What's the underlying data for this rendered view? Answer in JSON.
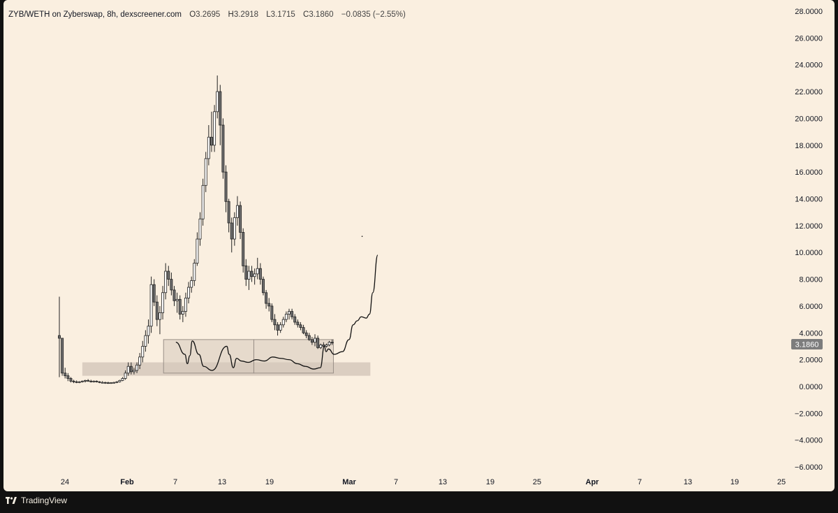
{
  "header": {
    "symbol": "ZYB/WETH on Zyberswap, 8h, dexscreener.com",
    "ohlc": [
      {
        "key": "O",
        "value": "3.2695"
      },
      {
        "key": "H",
        "value": "3.2918"
      },
      {
        "key": "L",
        "value": "3.1715"
      },
      {
        "key": "C",
        "value": "3.1860"
      }
    ],
    "change": "−0.0835 (−2.55%)"
  },
  "footer": {
    "brand": "TradingView"
  },
  "colors": {
    "background": "#faefe0",
    "frame": "#111111",
    "candle_up": "#ffffff",
    "candle_down": "#6e6e6e",
    "candle_wick": "#222222",
    "zone_fill": "#d5c8bb",
    "projection": "#111111",
    "price_tag": "#7d7d7d"
  },
  "chart_data": {
    "type": "candlestick",
    "title": "ZYB/WETH on Zyberswap, 8h, dexscreener.com",
    "y_ticks": [
      "28.0000",
      "26.0000",
      "24.0000",
      "22.0000",
      "20.0000",
      "18.0000",
      "16.0000",
      "14.0000",
      "12.0000",
      "10.0000",
      "8.0000",
      "6.0000",
      "4.0000",
      "2.0000",
      "0.0000",
      "−2.0000",
      "−4.0000",
      "−6.0000"
    ],
    "ylim": [
      -6.8,
      28.3
    ],
    "x_ticks": [
      "24",
      "Feb",
      "7",
      "13",
      "19",
      "Mar",
      "7",
      "13",
      "19",
      "25",
      "Apr",
      "7",
      "13",
      "19",
      "25"
    ],
    "last_price": "3.1860",
    "grid": false,
    "series": [
      {
        "values": [
          [
            3.8,
            6.7,
            0.7,
            3.6
          ],
          [
            3.6,
            3.6,
            0.8,
            1.0
          ],
          [
            1.0,
            1.4,
            0.6,
            0.8
          ],
          [
            0.8,
            1.0,
            0.4,
            0.6
          ],
          [
            0.6,
            0.7,
            0.3,
            0.4
          ],
          [
            0.4,
            0.5,
            0.25,
            0.35
          ],
          [
            0.35,
            0.45,
            0.25,
            0.3
          ],
          [
            0.3,
            0.4,
            0.25,
            0.35
          ],
          [
            0.35,
            0.45,
            0.3,
            0.4
          ],
          [
            0.4,
            0.5,
            0.3,
            0.45
          ],
          [
            0.45,
            0.55,
            0.35,
            0.4
          ],
          [
            0.4,
            0.5,
            0.3,
            0.35
          ],
          [
            0.35,
            0.45,
            0.3,
            0.4
          ],
          [
            0.4,
            0.45,
            0.3,
            0.35
          ],
          [
            0.35,
            0.4,
            0.25,
            0.3
          ],
          [
            0.3,
            0.4,
            0.25,
            0.3
          ],
          [
            0.3,
            0.35,
            0.2,
            0.28
          ],
          [
            0.28,
            0.35,
            0.2,
            0.25
          ],
          [
            0.25,
            0.32,
            0.2,
            0.28
          ],
          [
            0.28,
            0.35,
            0.22,
            0.3
          ],
          [
            0.3,
            0.4,
            0.25,
            0.35
          ],
          [
            0.35,
            0.5,
            0.3,
            0.45
          ],
          [
            0.45,
            0.7,
            0.4,
            0.6
          ],
          [
            0.6,
            1.2,
            0.5,
            1.0
          ],
          [
            1.0,
            1.8,
            0.8,
            1.5
          ],
          [
            1.5,
            1.8,
            0.9,
            1.1
          ],
          [
            1.1,
            1.4,
            0.9,
            1.2
          ],
          [
            1.2,
            1.8,
            1.0,
            1.6
          ],
          [
            1.6,
            2.5,
            1.3,
            2.2
          ],
          [
            2.2,
            3.4,
            1.8,
            3.0
          ],
          [
            3.0,
            4.2,
            2.6,
            3.8
          ],
          [
            3.8,
            5.0,
            3.2,
            4.5
          ],
          [
            4.5,
            8.2,
            4.0,
            7.6
          ],
          [
            7.6,
            8.0,
            6.0,
            6.3
          ],
          [
            6.3,
            6.8,
            4.5,
            5.0
          ],
          [
            5.0,
            6.0,
            3.9,
            5.5
          ],
          [
            5.5,
            7.5,
            5.0,
            7.0
          ],
          [
            7.0,
            9.2,
            6.5,
            8.6
          ],
          [
            8.6,
            9.0,
            7.5,
            8.0
          ],
          [
            8.0,
            8.5,
            6.8,
            7.2
          ],
          [
            7.2,
            7.5,
            6.0,
            6.4
          ],
          [
            6.4,
            7.0,
            5.5,
            6.5
          ],
          [
            6.5,
            6.8,
            5.0,
            5.4
          ],
          [
            5.4,
            6.0,
            4.8,
            5.6
          ],
          [
            5.6,
            7.0,
            5.2,
            6.6
          ],
          [
            6.6,
            7.8,
            6.2,
            7.4
          ],
          [
            7.4,
            8.2,
            7.0,
            7.9
          ],
          [
            7.9,
            9.5,
            7.5,
            9.2
          ],
          [
            9.2,
            11.5,
            9.0,
            11.0
          ],
          [
            11.0,
            13.0,
            10.5,
            12.5
          ],
          [
            12.5,
            15.5,
            12.0,
            15.0
          ],
          [
            15.0,
            17.5,
            14.5,
            17.0
          ],
          [
            17.0,
            19.5,
            16.5,
            18.6
          ],
          [
            18.6,
            20.5,
            17.5,
            18.0
          ],
          [
            18.0,
            21.0,
            17.5,
            20.5
          ],
          [
            20.5,
            23.2,
            20.0,
            22.0
          ],
          [
            22.0,
            22.5,
            18.0,
            19.5
          ],
          [
            19.5,
            20.0,
            15.5,
            16.0
          ],
          [
            16.0,
            16.5,
            13.0,
            13.8
          ],
          [
            13.8,
            14.0,
            11.5,
            12.2
          ],
          [
            12.2,
            12.6,
            10.0,
            11.0
          ],
          [
            11.0,
            13.0,
            10.5,
            12.6
          ],
          [
            12.6,
            14.2,
            12.0,
            13.5
          ],
          [
            13.5,
            13.8,
            11.0,
            11.5
          ],
          [
            11.5,
            11.8,
            8.5,
            9.0
          ],
          [
            9.0,
            9.5,
            7.5,
            8.0
          ],
          [
            8.0,
            9.0,
            7.2,
            8.6
          ],
          [
            8.6,
            9.0,
            7.8,
            8.2
          ],
          [
            8.2,
            8.8,
            7.6,
            8.4
          ],
          [
            8.4,
            9.6,
            8.0,
            8.8
          ],
          [
            8.8,
            9.2,
            7.6,
            8.0
          ],
          [
            8.0,
            8.2,
            6.8,
            7.0
          ],
          [
            7.0,
            7.2,
            5.8,
            6.2
          ],
          [
            6.2,
            6.6,
            5.6,
            6.0
          ],
          [
            6.0,
            6.2,
            4.8,
            5.0
          ],
          [
            5.0,
            5.4,
            4.2,
            4.6
          ],
          [
            4.6,
            4.8,
            3.8,
            4.2
          ],
          [
            4.2,
            4.8,
            4.0,
            4.6
          ],
          [
            4.6,
            5.2,
            4.4,
            5.0
          ],
          [
            5.0,
            5.6,
            4.8,
            5.4
          ],
          [
            5.4,
            5.8,
            5.0,
            5.6
          ],
          [
            5.6,
            5.8,
            5.0,
            5.2
          ],
          [
            5.2,
            5.4,
            4.6,
            4.8
          ],
          [
            4.8,
            5.0,
            4.4,
            4.6
          ],
          [
            4.6,
            4.8,
            4.2,
            4.4
          ],
          [
            4.4,
            4.6,
            3.9,
            4.0
          ],
          [
            4.0,
            4.2,
            3.6,
            3.8
          ],
          [
            3.8,
            4.0,
            3.4,
            3.5
          ],
          [
            3.5,
            3.7,
            3.1,
            3.3
          ],
          [
            3.3,
            3.9,
            3.0,
            3.6
          ],
          [
            3.6,
            3.8,
            2.8,
            2.9
          ],
          [
            2.9,
            3.2,
            2.8,
            3.1
          ],
          [
            3.1,
            3.3,
            2.9,
            3.0
          ],
          [
            3.0,
            3.2,
            2.9,
            3.1
          ],
          [
            3.1,
            3.4,
            3.0,
            3.3
          ],
          [
            3.3,
            3.5,
            3.1,
            3.2695
          ]
        ]
      },
      {
        "name": "",
        "values": []
      }
    ],
    "projection": {
      "x": [
        14.2,
        15.3,
        15.6,
        15.9,
        16.2,
        17.0,
        17.6,
        18.6,
        20.4,
        20.7,
        21.2,
        21.6,
        22.2,
        23.0,
        24.0,
        25.0,
        26.0,
        27.0,
        28.0,
        29.0,
        30.0,
        31.0,
        31.8,
        32.3,
        32.5,
        32.8,
        33.5,
        34.5,
        35.3,
        35.8,
        36.3,
        36.8,
        37.4,
        37.8,
        38.2,
        38.8
      ],
      "y": [
        3.3,
        2.4,
        1.7,
        2.3,
        3.4,
        2.4,
        1.5,
        1.2,
        3.0,
        2.4,
        1.4,
        2.1,
        1.9,
        1.8,
        2.0,
        1.9,
        2.2,
        2.1,
        2.0,
        1.7,
        1.5,
        1.3,
        1.4,
        3.0,
        2.6,
        2.8,
        2.4,
        2.6,
        3.5,
        4.6,
        4.9,
        5.2,
        5.1,
        5.4,
        7.0,
        9.8
      ]
    },
    "zones": [
      {
        "x0": 2.8,
        "x1": 37.9,
        "y0": 0.8,
        "y1": 1.8
      },
      {
        "x0": 12.7,
        "x1": 23.7,
        "y0": 1.0,
        "y1": 3.5
      },
      {
        "x0": 23.7,
        "x1": 33.4,
        "y0": 1.0,
        "y1": 3.5
      }
    ]
  }
}
